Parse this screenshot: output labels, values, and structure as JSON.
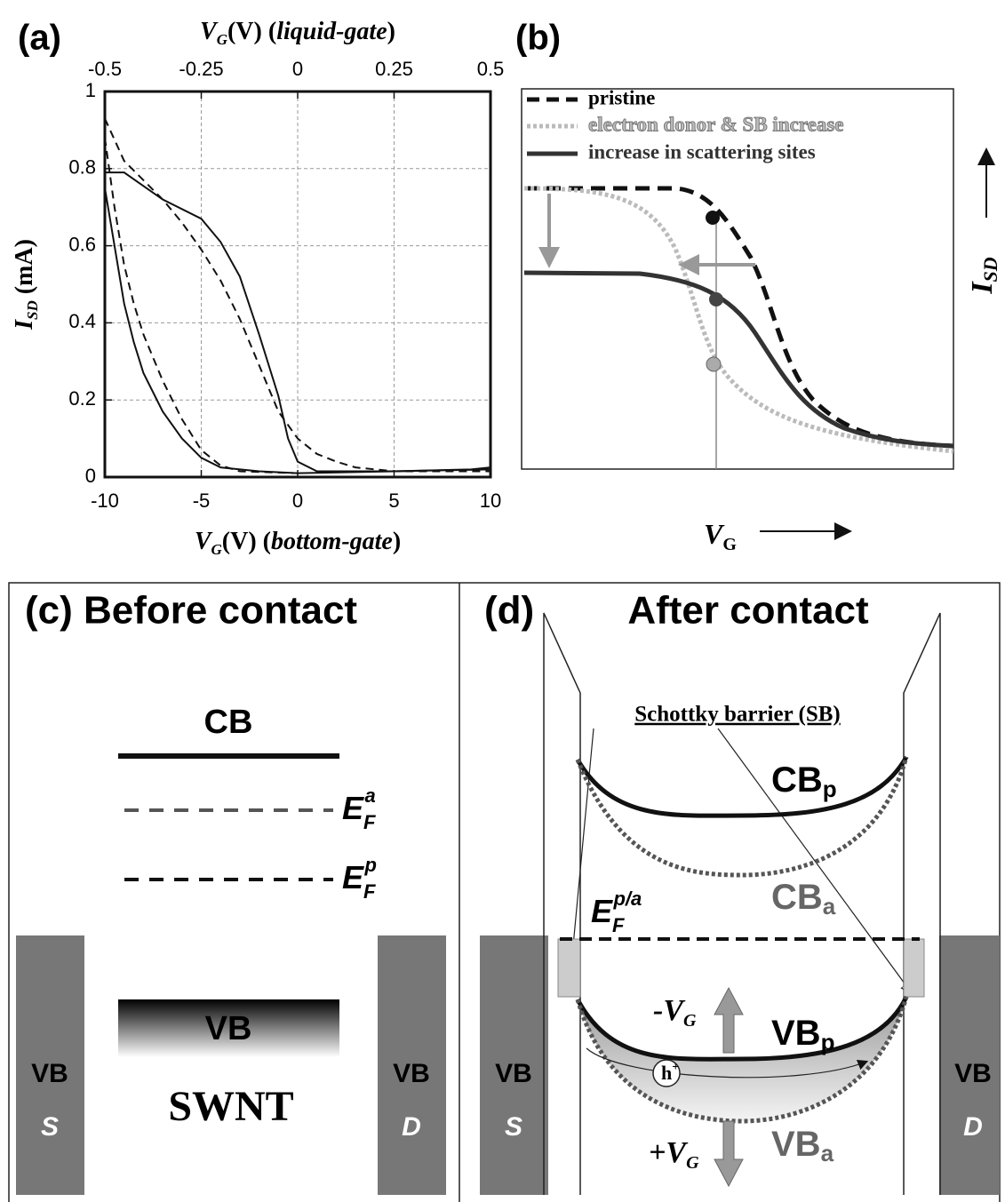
{
  "chart_data": {
    "type": "line",
    "panel_label": "(a)",
    "x_label": [
      "V",
      "G",
      "(V) (",
      "bottom-gate",
      ")"
    ],
    "x2_label": [
      "V",
      "G",
      "(V) (",
      "liquid-gate",
      ")"
    ],
    "y_label": [
      "I",
      "SD",
      " (mA)"
    ],
    "xlim": [
      -10,
      10
    ],
    "xticks": [
      -10,
      -5,
      0,
      5,
      10
    ],
    "x2lim": [
      -0.5,
      0.5
    ],
    "x2ticks": [
      -0.5,
      -0.25,
      0,
      0.25,
      0.5
    ],
    "ylim": [
      0,
      1
    ],
    "yticks": [
      0,
      0.2,
      0.4,
      0.6,
      0.8,
      1
    ],
    "grid": true,
    "series": [
      {
        "color": "#111111",
        "dash": false,
        "x": [
          -10,
          -9,
          -7,
          -5,
          -4,
          -3,
          -2,
          -1,
          -0.5,
          0,
          1,
          5,
          9,
          10
        ],
        "values": [
          0.79,
          0.79,
          0.72,
          0.67,
          0.61,
          0.52,
          0.37,
          0.21,
          0.1,
          0.04,
          0.015,
          0.015,
          0.02,
          0.025
        ]
      },
      {
        "color": "#111111",
        "dash": false,
        "x": [
          -10,
          -9.5,
          -9,
          -8.5,
          -8,
          -7,
          -6,
          -5,
          -4,
          -2,
          0,
          5,
          10
        ],
        "values": [
          0.75,
          0.6,
          0.45,
          0.35,
          0.27,
          0.17,
          0.1,
          0.05,
          0.025,
          0.015,
          0.01,
          0.015,
          0.02
        ]
      },
      {
        "color": "#111111",
        "dash": true,
        "x": [
          -10,
          -9,
          -8,
          -7,
          -6,
          -5,
          -4,
          -3,
          -2,
          -1,
          0,
          1,
          2,
          3,
          5,
          10
        ],
        "values": [
          0.93,
          0.82,
          0.77,
          0.72,
          0.66,
          0.59,
          0.51,
          0.41,
          0.29,
          0.17,
          0.1,
          0.06,
          0.04,
          0.025,
          0.015,
          0.015
        ]
      },
      {
        "color": "#111111",
        "dash": true,
        "x": [
          -10,
          -9.5,
          -9,
          -8.5,
          -8,
          -7,
          -6,
          -5,
          -4,
          -3,
          0
        ],
        "values": [
          0.88,
          0.7,
          0.55,
          0.45,
          0.37,
          0.25,
          0.15,
          0.07,
          0.03,
          0.015,
          0.01
        ]
      }
    ]
  },
  "panel_b": {
    "label": "(b)",
    "legend": [
      "pristine",
      "electron donor & SB increase",
      "increase in scattering sites"
    ],
    "y_axis": [
      "I",
      "SD"
    ],
    "x_axis": [
      "V",
      "G"
    ]
  },
  "panel_c": {
    "label": "(c) Before contact",
    "cb": "CB",
    "ef_a": [
      "E",
      "F",
      "a"
    ],
    "ef_p": [
      "E",
      "F",
      "p"
    ],
    "vb": "VB",
    "swnt": "SWNT",
    "source": [
      "VB",
      "S"
    ],
    "drain": [
      "VB",
      "D"
    ]
  },
  "panel_d": {
    "label": "(d)",
    "title": "After contact",
    "schottky": "Schottky barrier (SB)",
    "cb_p": [
      "CB",
      "p"
    ],
    "cb_a": [
      "CB",
      "a"
    ],
    "ef": [
      "E",
      "F",
      "p/a"
    ],
    "minus_vg": [
      "-V",
      "G"
    ],
    "vb_p": [
      "VB",
      "p"
    ],
    "hole": [
      "h",
      "+"
    ],
    "plus_vg": [
      "+V",
      "G"
    ],
    "vb_a": [
      "VB",
      "a"
    ],
    "source": [
      "VB",
      "S"
    ],
    "drain": [
      "VB",
      "D"
    ]
  }
}
